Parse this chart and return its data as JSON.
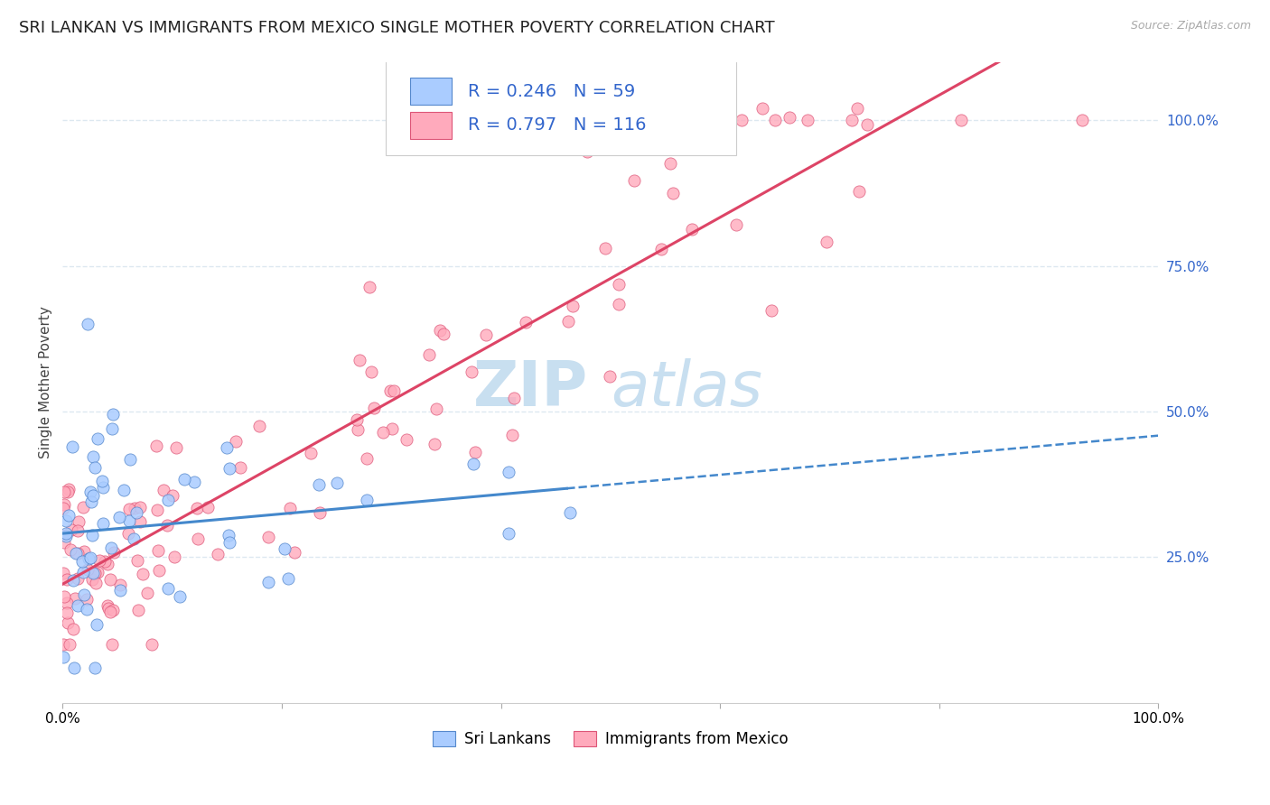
{
  "title": "SRI LANKAN VS IMMIGRANTS FROM MEXICO SINGLE MOTHER POVERTY CORRELATION CHART",
  "source": "Source: ZipAtlas.com",
  "ylabel": "Single Mother Poverty",
  "legend_label1": "Sri Lankans",
  "legend_label2": "Immigrants from Mexico",
  "r1": 0.246,
  "n1": 59,
  "r2": 0.797,
  "n2": 116,
  "color_sri_fill": "#aaccff",
  "color_sri_edge": "#5588cc",
  "color_sri_line": "#4488cc",
  "color_mex_fill": "#ffaabc",
  "color_mex_edge": "#dd5577",
  "color_mex_line": "#dd4466",
  "watermark_zip": "ZIP",
  "watermark_atlas": "atlas",
  "watermark_color": "#c8dff0",
  "title_fontsize": 13,
  "axis_label_fontsize": 11,
  "tick_fontsize": 11,
  "legend_fontsize": 14,
  "background_color": "#ffffff",
  "grid_color": "#dde8f0",
  "text_color_dark": "#222222",
  "text_color_blue": "#3366cc",
  "text_color_source": "#aaaaaa"
}
